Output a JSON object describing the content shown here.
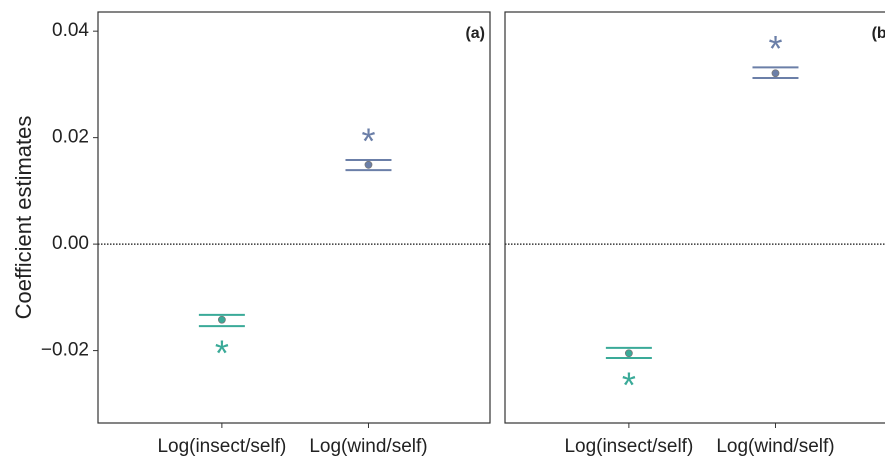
{
  "chart_data": [
    {
      "type": "point",
      "panel_label": "(a)",
      "y_label": "Coefficient estimates",
      "categories": [
        "Log(insect/self)",
        "Log(wind/self)"
      ],
      "values": [
        -0.0142,
        0.0149
      ],
      "lower": [
        -0.0154,
        0.0139
      ],
      "upper": [
        -0.0133,
        0.0158
      ],
      "significance": [
        "*",
        "*"
      ],
      "colors": [
        "#3aaa98",
        "#6b7fa8"
      ],
      "ylim": [
        -0.0336,
        0.0436
      ],
      "yticks": [
        {
          "value": -0.02,
          "label": "−0.02"
        },
        {
          "value": 0,
          "label": "0.00"
        },
        0.02,
        0.04
      ],
      "hline": 0
    },
    {
      "type": "point",
      "panel_label": "(b)",
      "categories": [
        "Log(insect/self)",
        "Log(wind/self)"
      ],
      "values": [
        -0.0205,
        0.0321
      ],
      "lower": [
        -0.0214,
        0.0312
      ],
      "upper": [
        -0.0195,
        0.0332
      ],
      "significance": [
        "*",
        "*"
      ],
      "colors": [
        "#3aaa98",
        "#6b7fa8"
      ],
      "ylim": [
        -0.0336,
        0.0436
      ],
      "hline": 0
    }
  ]
}
